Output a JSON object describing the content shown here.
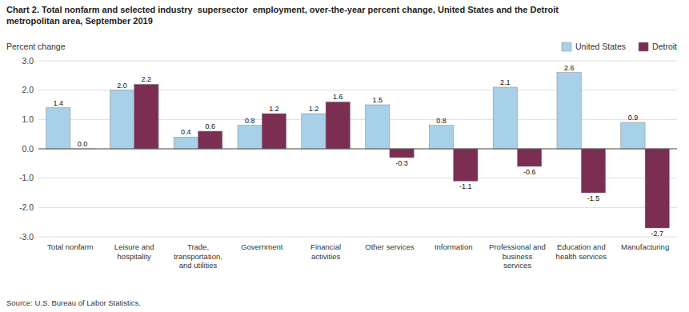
{
  "chart_data": {
    "type": "bar",
    "title": "Chart 2. Total nonfarm and selected industry  supersector  employment, over-the-year percent change, United States and the Detroit\nmetropolitan area, September 2019",
    "y_label": "Percent change",
    "categories": [
      "Total nonfarm",
      "Leisure and\nhospitality",
      "Trade,\ntransportation,\nand utilities",
      "Government",
      "Financial\nactivities",
      "Other services",
      "Information",
      "Professional and\nbusiness\nservices",
      "Education and\nhealth services",
      "Manufacturing"
    ],
    "series": [
      {
        "name": "United States",
        "color": "#a8d0e8",
        "values": [
          1.4,
          2.0,
          0.4,
          0.8,
          1.2,
          1.5,
          0.8,
          2.1,
          2.6,
          0.9
        ],
        "value_labels": [
          "1.4",
          "2.0",
          "0.4",
          "0.8",
          "1.2",
          "1.5",
          "0.8",
          "2.1",
          "2.6",
          "0.9"
        ]
      },
      {
        "name": "Detroit",
        "color": "#7b2d52",
        "values": [
          0.0,
          2.2,
          0.6,
          1.2,
          1.6,
          -0.3,
          -1.1,
          -0.6,
          -1.5,
          -2.7
        ],
        "value_labels": [
          "0.0",
          "2.2",
          "0.6",
          "1.2",
          "1.6",
          "-0.3",
          "-1.1",
          "-0.6",
          "-1.5",
          "-2.7"
        ]
      }
    ],
    "ylim": [
      -3.0,
      3.0
    ],
    "yticks": [
      {
        "value": -3.0,
        "label": "-3.0"
      },
      {
        "value": -2.0,
        "label": "-2.0"
      },
      {
        "value": -1.0,
        "label": "-1.0"
      },
      {
        "value": 0.0,
        "label": "0.0"
      },
      {
        "value": 1.0,
        "label": "1.0"
      },
      {
        "value": 2.0,
        "label": "2.0"
      },
      {
        "value": 3.0,
        "label": "3.0"
      }
    ],
    "grid": true,
    "legend": "upper right",
    "data_labels": true,
    "annotations": [
      "Source: U.S. Bureau of Labor Statistics."
    ]
  }
}
